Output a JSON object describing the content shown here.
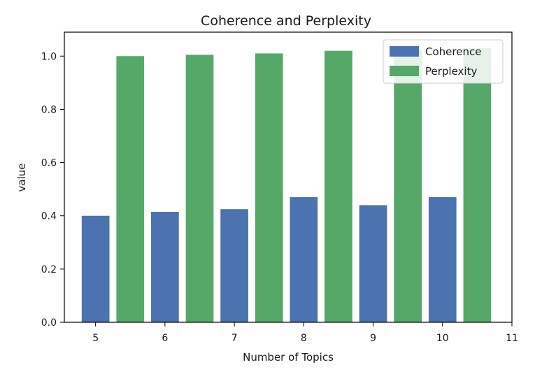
{
  "chart_data": {
    "type": "bar",
    "title": "Coherence and Perplexity",
    "xlabel": "Number of Topics",
    "ylabel": "value",
    "x_ticks": [
      "5",
      "6",
      "7",
      "8",
      "9",
      "10",
      "11"
    ],
    "x_tick_values": [
      5,
      6,
      7,
      8,
      9,
      10,
      11
    ],
    "x_range": [
      4.55,
      11
    ],
    "ylim": [
      0,
      1.09
    ],
    "y_ticks": [
      "0.0",
      "0.2",
      "0.4",
      "0.6",
      "0.8",
      "1.0"
    ],
    "y_tick_values": [
      0,
      0.2,
      0.4,
      0.6,
      0.8,
      1.0
    ],
    "grid": false,
    "legend_position": "top-right",
    "series": [
      {
        "name": "Coherence",
        "color": "#4c72b0",
        "x": [
          5,
          6,
          7,
          8,
          9,
          10
        ],
        "values": [
          0.4,
          0.415,
          0.425,
          0.47,
          0.44,
          0.47
        ]
      },
      {
        "name": "Perplexity",
        "color": "#55a868",
        "x": [
          5.5,
          6.5,
          7.5,
          8.5,
          9.5,
          10.5
        ],
        "values": [
          1.0,
          1.005,
          1.01,
          1.02,
          1.025,
          1.03
        ]
      }
    ]
  }
}
